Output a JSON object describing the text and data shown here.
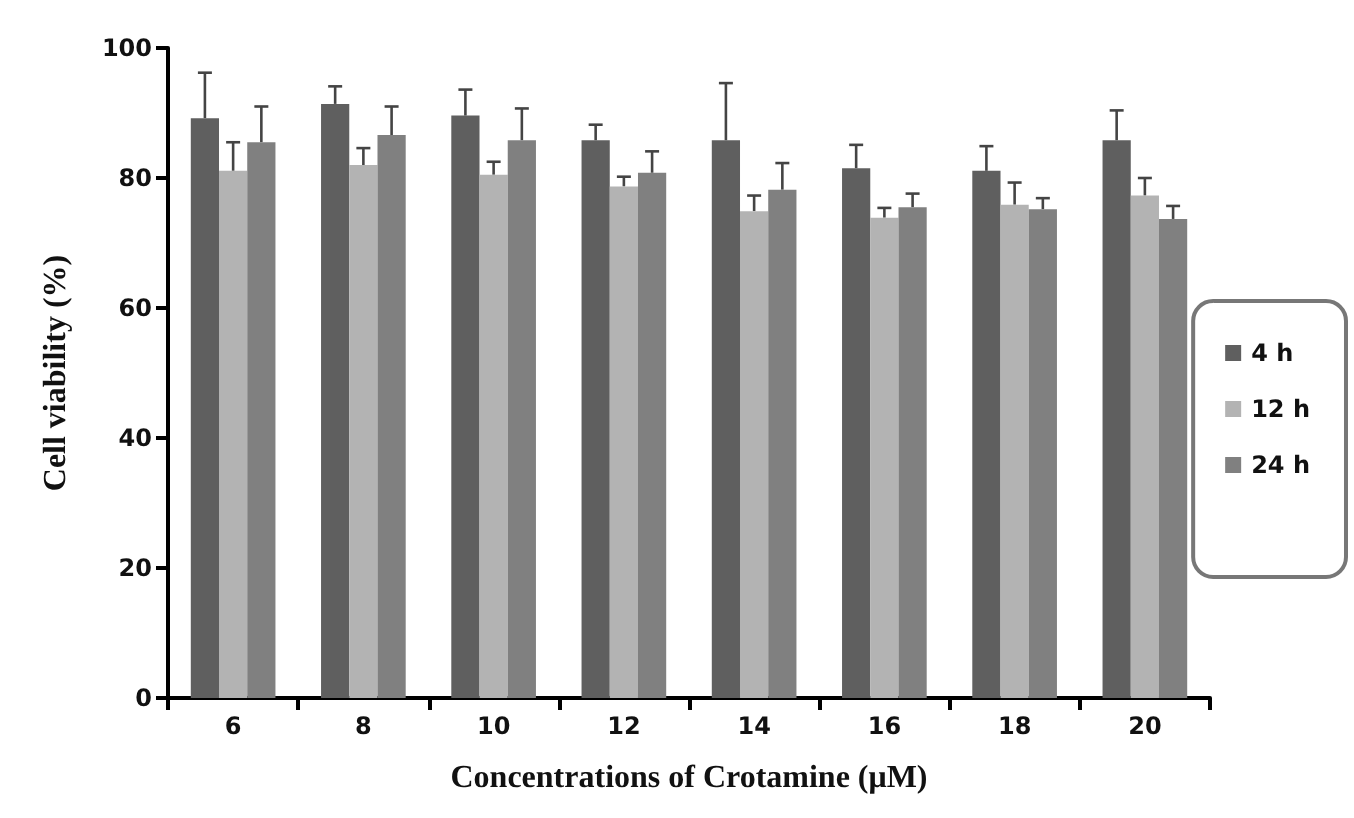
{
  "chart_data": {
    "type": "bar",
    "xlabel": "Concentrations of Crotamine (μM)",
    "ylabel": "Cell viability (%)",
    "categories": [
      "6",
      "8",
      "10",
      "12",
      "14",
      "16",
      "18",
      "20"
    ],
    "series": [
      {
        "name": "4 h",
        "color": "#5f5f5f",
        "values": [
          89.2,
          91.4,
          89.6,
          85.8,
          85.8,
          81.5,
          81.1,
          85.8
        ],
        "errors": [
          7,
          2.7,
          4,
          2.4,
          8.8,
          3.6,
          3.8,
          4.6
        ]
      },
      {
        "name": "12 h",
        "color": "#b3b3b3",
        "values": [
          81.1,
          82.0,
          80.5,
          78.7,
          74.9,
          73.9,
          75.9,
          77.3
        ],
        "errors": [
          4.4,
          2.6,
          2,
          1.5,
          2.4,
          1.5,
          3.4,
          2.7
        ]
      },
      {
        "name": "24 h",
        "color": "#808080",
        "values": [
          85.5,
          86.6,
          85.8,
          80.8,
          78.2,
          75.5,
          75.2,
          73.7
        ],
        "errors": [
          5.5,
          4.4,
          4.9,
          3.3,
          4.1,
          2.1,
          1.7,
          2
        ]
      }
    ],
    "ylim": [
      0,
      100
    ],
    "yticks": [
      0,
      20,
      40,
      60,
      80,
      100
    ],
    "grid": false,
    "legend": "right"
  }
}
